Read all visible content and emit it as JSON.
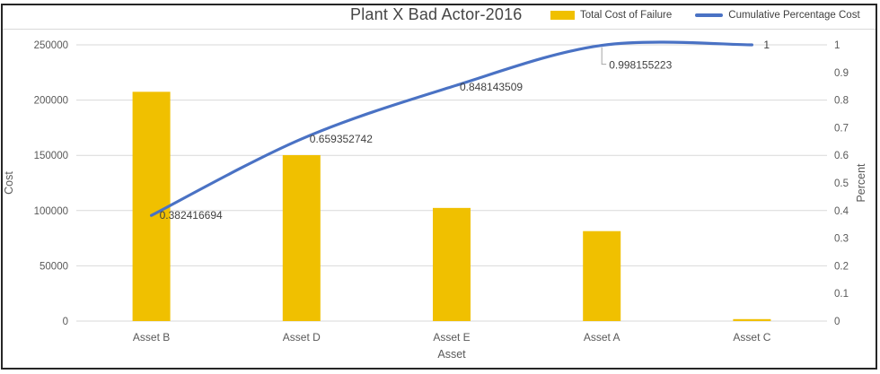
{
  "chart_data": {
    "type": "pareto-combo (bar + line)",
    "title": "Plant X Bad Actor-2016",
    "categories": [
      "Asset B",
      "Asset D",
      "Asset E",
      "Asset A",
      "Asset C"
    ],
    "xlabel": "Asset",
    "axes": {
      "left": {
        "label": "Cost",
        "range": [
          0,
          250000
        ],
        "ticks": [
          "250000",
          "200000",
          "150000",
          "100000",
          "50000",
          "0"
        ]
      },
      "right": {
        "label": "Percent",
        "range": [
          0,
          1
        ],
        "ticks": [
          "1",
          "0.9",
          "0.8",
          "0.7",
          "0.6",
          "0.5",
          "0.4",
          "0.3",
          "0.2",
          "0.1",
          "0"
        ]
      }
    },
    "series": [
      {
        "name": "Total Cost of Failure",
        "type": "bar",
        "axis": "left",
        "color": "#F0C000",
        "values": [
          207500,
          150200,
          102400,
          81400,
          1000
        ]
      },
      {
        "name": "Cumulative Percentage Cost",
        "type": "line",
        "axis": "right",
        "color": "#4A72C4",
        "values": [
          0.382416694,
          0.659352742,
          0.848143509,
          0.998155223,
          1
        ],
        "point_labels": [
          "0.382416694",
          "0.659352742",
          "0.848143509",
          "0.998155223",
          "1"
        ]
      }
    ],
    "grid": true,
    "legend_position": "top-right",
    "colors": {
      "grid": "#D9D9D9",
      "frame_border": "#262626",
      "tick_text": "#595959",
      "data_label_text": "#404040",
      "leader_line": "#A6A6A6"
    }
  }
}
